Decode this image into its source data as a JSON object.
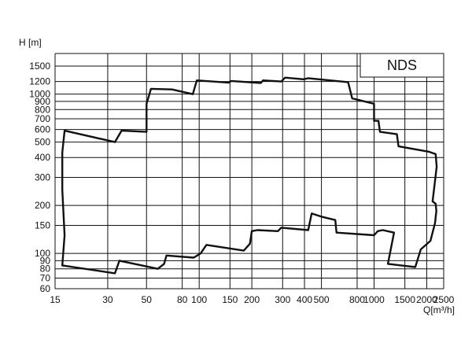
{
  "chart_data": {
    "type": "line",
    "title": "",
    "xlabel": "Q[m³/h]",
    "ylabel": "H [m]",
    "x_scale": "log",
    "y_scale": "log",
    "xlim": [
      15,
      2500
    ],
    "ylim": [
      60,
      1800
    ],
    "grid": true,
    "x_ticks": [
      15,
      30,
      50,
      80,
      100,
      150,
      200,
      300,
      400,
      500,
      800,
      1000,
      1500,
      2000,
      2500
    ],
    "y_ticks": [
      60,
      70,
      80,
      90,
      100,
      150,
      200,
      300,
      400,
      500,
      600,
      700,
      800,
      900,
      1000,
      1200,
      1500
    ],
    "series": [
      {
        "name": "NDS",
        "color": "#111111",
        "points": [
          [
            17.0,
            590
          ],
          [
            33.0,
            500
          ],
          [
            36.0,
            590
          ],
          [
            50.0,
            580
          ],
          [
            50.0,
            870
          ],
          [
            53.0,
            1080
          ],
          [
            70.0,
            1070
          ],
          [
            92.0,
            1000
          ],
          [
            97.0,
            1220
          ],
          [
            148.0,
            1180
          ],
          [
            152.0,
            1210
          ],
          [
            225.0,
            1175
          ],
          [
            232.0,
            1220
          ],
          [
            295.0,
            1200
          ],
          [
            310.0,
            1270
          ],
          [
            395.0,
            1240
          ],
          [
            420.0,
            1260
          ],
          [
            710.0,
            1190
          ],
          [
            750.0,
            940
          ],
          [
            960.0,
            880
          ],
          [
            1000.0,
            870
          ],
          [
            1000.0,
            680
          ],
          [
            1060.0,
            680
          ],
          [
            1080.0,
            580
          ],
          [
            1350.0,
            560
          ],
          [
            1380.0,
            470
          ],
          [
            2050.0,
            435
          ],
          [
            2250.0,
            420
          ],
          [
            2280.0,
            350
          ],
          [
            2160.0,
            212
          ],
          [
            2250.0,
            205
          ],
          [
            2270.0,
            185
          ],
          [
            2230.0,
            155
          ],
          [
            2100.0,
            120
          ],
          [
            1850.0,
            106
          ],
          [
            1720.0,
            82
          ],
          [
            1200.0,
            86
          ],
          [
            1300.0,
            135
          ],
          [
            1120.0,
            140
          ],
          [
            1050.0,
            138
          ],
          [
            1000.0,
            130
          ],
          [
            610.0,
            135
          ],
          [
            600.0,
            162
          ],
          [
            500.0,
            170
          ],
          [
            440.0,
            178
          ],
          [
            420.0,
            140
          ],
          [
            295.0,
            145
          ],
          [
            282.0,
            138
          ],
          [
            215.0,
            140
          ],
          [
            200.0,
            138
          ],
          [
            195.0,
            115
          ],
          [
            180.0,
            104
          ],
          [
            110.0,
            113
          ],
          [
            102.0,
            100
          ],
          [
            93.0,
            94
          ],
          [
            65.0,
            97
          ],
          [
            63.0,
            86
          ],
          [
            58.0,
            80
          ],
          [
            35.0,
            90
          ],
          [
            33.0,
            75
          ],
          [
            16.5,
            84
          ],
          [
            17.0,
            130
          ],
          [
            16.5,
            250
          ],
          [
            16.5,
            430
          ],
          [
            17.0,
            590
          ]
        ]
      }
    ],
    "legend": {
      "placement": "top-right",
      "entries": [
        "NDS"
      ]
    }
  }
}
